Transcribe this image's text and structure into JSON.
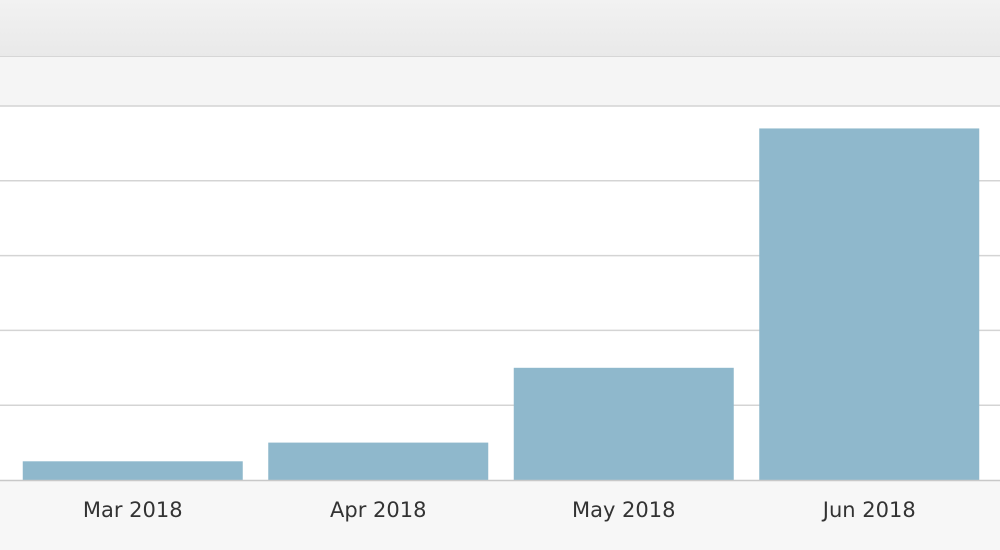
{
  "chart_data": {
    "type": "bar",
    "categories": [
      "Mar 2018",
      "Apr 2018",
      "May 2018",
      "Jun 2018"
    ],
    "values": [
      2.5,
      5,
      15,
      47
    ],
    "ylim": [
      0,
      50
    ],
    "grid": true,
    "legend": "none",
    "title": "",
    "xlabel": "",
    "ylabel": ""
  },
  "colors": {
    "bar": "#8fb8cc",
    "grid": "#d4d4d4",
    "plot_background": "#ffffff",
    "page_background": "#f6f6f6"
  }
}
